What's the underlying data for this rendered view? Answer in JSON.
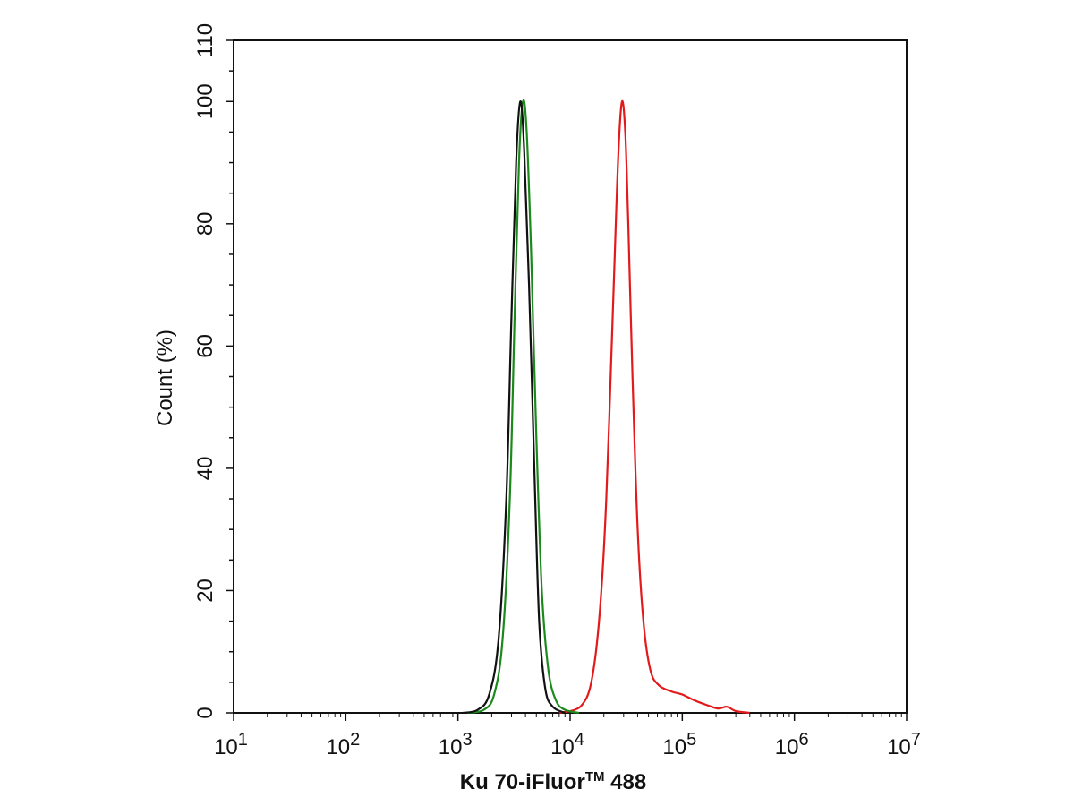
{
  "chart_data": {
    "type": "line",
    "xscale": "log",
    "xlim": [
      10,
      10000000
    ],
    "ylim": [
      0,
      110
    ],
    "grid": false,
    "ylabel": "Count  (%)",
    "xlabel": "Ku 70-iFluor",
    "xlabel_superscript": "TM",
    "xlabel_suffix": " 488",
    "yticks": [
      "0",
      "20",
      "40",
      "60",
      "80",
      "100",
      "110"
    ],
    "ytick_values": [
      0,
      20,
      40,
      60,
      80,
      100,
      110
    ],
    "xticks": [
      {
        "base": "10",
        "exp": "1",
        "value": 10
      },
      {
        "base": "10",
        "exp": "2",
        "value": 100
      },
      {
        "base": "10",
        "exp": "3",
        "value": 1000
      },
      {
        "base": "10",
        "exp": "4",
        "value": 10000
      },
      {
        "base": "10",
        "exp": "5",
        "value": 100000
      },
      {
        "base": "10",
        "exp": "6",
        "value": 1000000
      },
      {
        "base": "10",
        "exp": "7",
        "value": 10000000
      }
    ],
    "series": [
      {
        "color": "#e31a1c",
        "points": [
          [
            8000,
            0
          ],
          [
            11000,
            0.5
          ],
          [
            13000,
            1.5
          ],
          [
            15000,
            4
          ],
          [
            17000,
            10
          ],
          [
            19000,
            20
          ],
          [
            21000,
            35
          ],
          [
            23000,
            55
          ],
          [
            25000,
            75
          ],
          [
            27000,
            92
          ],
          [
            29000,
            100
          ],
          [
            31000,
            95
          ],
          [
            33000,
            80
          ],
          [
            36000,
            55
          ],
          [
            40000,
            30
          ],
          [
            45000,
            15
          ],
          [
            52000,
            7
          ],
          [
            62000,
            4.5
          ],
          [
            80000,
            3.5
          ],
          [
            100000,
            3
          ],
          [
            130000,
            2
          ],
          [
            170000,
            1.2
          ],
          [
            210000,
            0.7
          ],
          [
            250000,
            1
          ],
          [
            300000,
            0.3
          ],
          [
            400000,
            0
          ]
        ]
      },
      {
        "color": "#1a8a1a",
        "points": [
          [
            1200,
            0
          ],
          [
            1700,
            0.5
          ],
          [
            2100,
            3
          ],
          [
            2500,
            12
          ],
          [
            2900,
            35
          ],
          [
            3200,
            65
          ],
          [
            3500,
            90
          ],
          [
            3800,
            100
          ],
          [
            4100,
            95
          ],
          [
            4500,
            75
          ],
          [
            5000,
            45
          ],
          [
            5600,
            20
          ],
          [
            6400,
            7
          ],
          [
            7500,
            2
          ],
          [
            9000,
            0.5
          ],
          [
            12000,
            0
          ]
        ]
      },
      {
        "color": "#111111",
        "points": [
          [
            1100,
            0
          ],
          [
            1500,
            0.5
          ],
          [
            1900,
            3
          ],
          [
            2300,
            12
          ],
          [
            2700,
            35
          ],
          [
            3000,
            65
          ],
          [
            3300,
            90
          ],
          [
            3600,
            100
          ],
          [
            3900,
            92
          ],
          [
            4300,
            70
          ],
          [
            4800,
            40
          ],
          [
            5300,
            15
          ],
          [
            6000,
            4
          ],
          [
            7000,
            1
          ],
          [
            9000,
            0
          ]
        ]
      }
    ]
  }
}
